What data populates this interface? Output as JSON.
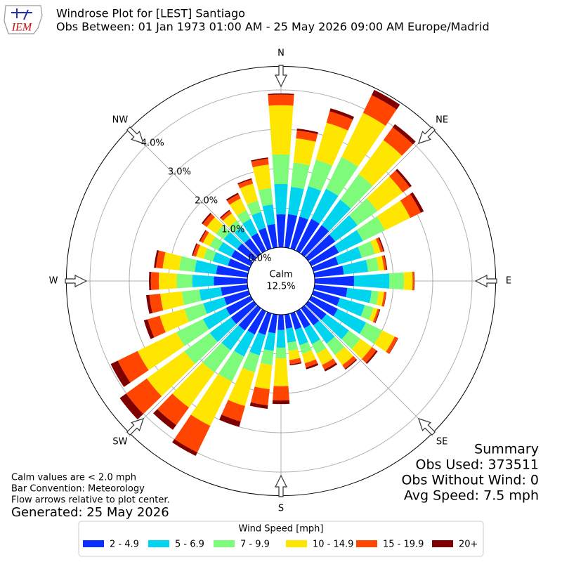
{
  "chart_data": {
    "type": "windrose",
    "title": "Windrose Plot for [LEST] Santiago",
    "subtitle": "Obs Between: 01 Jan 1973 01:00 AM - 25 May 2026 09:00 AM Europe/Madrid",
    "logo_text": "IEM",
    "x": [
      0,
      10,
      20,
      30,
      40,
      50,
      60,
      70,
      80,
      90,
      100,
      110,
      120,
      130,
      140,
      150,
      160,
      170,
      180,
      190,
      200,
      210,
      220,
      230,
      240,
      250,
      260,
      270,
      280,
      290,
      300,
      310,
      320,
      330,
      340,
      350
    ],
    "xticks": [
      {
        "value": 0,
        "label": "N"
      },
      {
        "value": 45,
        "label": "NE"
      },
      {
        "value": 90,
        "label": "E"
      },
      {
        "value": 135,
        "label": "SE"
      },
      {
        "value": 180,
        "label": "S"
      },
      {
        "value": 225,
        "label": "SW"
      },
      {
        "value": 270,
        "label": "W"
      },
      {
        "value": 315,
        "label": "NW"
      }
    ],
    "ylim": [
      0,
      4.6
    ],
    "yticks": [
      {
        "value": 0,
        "label": "0.0%"
      },
      {
        "value": 1,
        "label": "1.0%"
      },
      {
        "value": 2,
        "label": "2.0%"
      },
      {
        "value": 3,
        "label": "3.0%"
      },
      {
        "value": 4,
        "label": "4.0%"
      }
    ],
    "grid": true,
    "calm": {
      "label": "Calm",
      "value": 12.5,
      "value_label": "12.5%"
    },
    "legend_title": "Wind Speed [mph]",
    "series": [
      {
        "name": "2 - 4.9",
        "color": "#0a2eff",
        "values": [
          0.84,
          0.85,
          0.85,
          0.9,
          0.9,
          0.85,
          0.78,
          0.66,
          0.75,
          1.0,
          0.84,
          0.7,
          0.75,
          0.57,
          0.54,
          0.48,
          0.43,
          0.36,
          0.39,
          0.48,
          0.57,
          0.66,
          0.7,
          0.72,
          0.7,
          0.65,
          0.68,
          0.85,
          0.8,
          0.55,
          0.55,
          0.52,
          0.48,
          0.5,
          0.55,
          0.6
        ]
      },
      {
        "name": "5 - 6.9",
        "color": "#00d4ee",
        "values": [
          0.77,
          0.7,
          0.8,
          0.85,
          0.8,
          0.7,
          0.68,
          0.62,
          0.62,
          0.9,
          0.62,
          0.66,
          0.8,
          0.71,
          0.57,
          0.45,
          0.41,
          0.36,
          0.45,
          0.45,
          0.54,
          0.62,
          0.62,
          0.66,
          0.65,
          0.55,
          0.55,
          0.55,
          0.55,
          0.4,
          0.37,
          0.42,
          0.37,
          0.4,
          0.42,
          0.5
        ]
      },
      {
        "name": "7 - 9.9",
        "color": "#7efb7a",
        "values": [
          0.75,
          0.62,
          0.7,
          0.9,
          0.8,
          0.62,
          0.62,
          0.35,
          0.27,
          0.37,
          0.18,
          0.23,
          0.45,
          0.36,
          0.36,
          0.27,
          0.23,
          0.21,
          0.27,
          0.36,
          0.45,
          0.71,
          0.7,
          0.8,
          0.75,
          0.5,
          0.45,
          0.4,
          0.4,
          0.24,
          0.24,
          0.25,
          0.2,
          0.25,
          0.3,
          0.42
        ]
      },
      {
        "name": "10 - 14.9",
        "color": "#ffe600",
        "values": [
          1.25,
          0.62,
          0.98,
          1.25,
          1.07,
          0.8,
          0.72,
          0.15,
          0.14,
          0.22,
          0.14,
          0.11,
          0.36,
          0.36,
          0.32,
          0.32,
          0.25,
          0.23,
          0.71,
          0.62,
          0.89,
          1.25,
          1.1,
          1.18,
          1.1,
          0.65,
          0.55,
          0.45,
          0.42,
          0.2,
          0.19,
          0.29,
          0.22,
          0.33,
          0.45,
          0.6
        ]
      },
      {
        "name": "15 - 19.9",
        "color": "#ff4500",
        "values": [
          0.27,
          0.2,
          0.3,
          0.5,
          0.4,
          0.22,
          0.3,
          0.07,
          0.06,
          0.04,
          0.05,
          0.05,
          0.09,
          0.14,
          0.11,
          0.13,
          0.11,
          0.11,
          0.36,
          0.41,
          0.41,
          0.75,
          0.55,
          0.65,
          0.56,
          0.32,
          0.28,
          0.2,
          0.17,
          0.08,
          0.08,
          0.12,
          0.08,
          0.12,
          0.11,
          0.15
        ]
      },
      {
        "name": "20+",
        "color": "#800000",
        "values": [
          0.03,
          0.05,
          0.08,
          0.15,
          0.1,
          0.06,
          0.08,
          0.03,
          0.02,
          0.01,
          0.01,
          0.02,
          0.01,
          0.04,
          0.03,
          0.05,
          0.05,
          0.03,
          0.09,
          0.09,
          0.14,
          0.1,
          0.15,
          0.2,
          0.2,
          0.1,
          0.08,
          0.05,
          0.05,
          0.03,
          0.03,
          0.04,
          0.03,
          0.04,
          0.03,
          0.03
        ]
      }
    ],
    "summary": [
      "Summary",
      "Obs Used: 373511",
      "Obs Without Wind: 0",
      "Avg Speed: 7.5 mph"
    ],
    "notes": [
      "Calm values are < 2.0 mph",
      "Bar Convention: Meteorology",
      "Flow arrows relative to plot center."
    ],
    "generated": "Generated: 25 May 2026"
  }
}
